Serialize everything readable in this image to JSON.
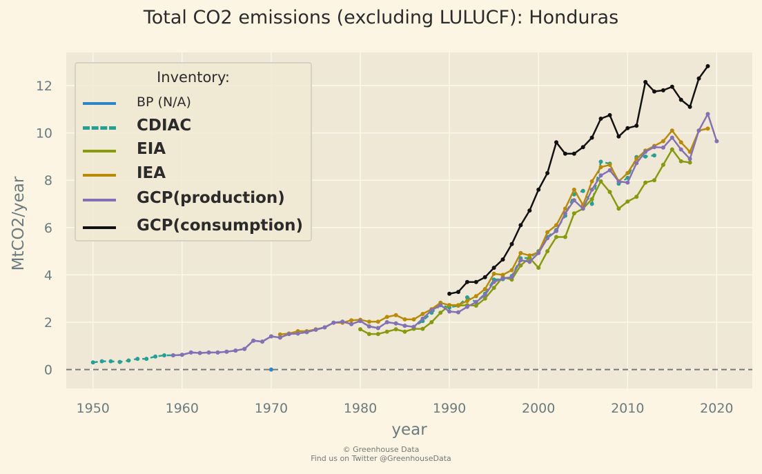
{
  "title": "Total CO2 emissions (excluding LULUCF): Honduras",
  "footer": {
    "line1": "© Greenhouse Data",
    "line2": "Find us on Twitter @GreenhouseData"
  },
  "legend": {
    "title": "Inventory:",
    "placement": "top-left",
    "entries": [
      {
        "label": "BP (N/A)",
        "color": "#2e86c9",
        "style": "solid",
        "weight": "normal"
      },
      {
        "label": "CDIAC",
        "color": "#26a095",
        "style": "dashed",
        "weight": "bold"
      },
      {
        "label": "EIA",
        "color": "#869a0d",
        "style": "solid",
        "weight": "bold"
      },
      {
        "label": "IEA",
        "color": "#b98a06",
        "style": "solid",
        "weight": "bold"
      },
      {
        "label": "GCP(production)",
        "color": "#8471b5",
        "style": "solid",
        "weight": "bold"
      },
      {
        "label": "GCP(consumption)",
        "color": "#111111",
        "style": "solid",
        "weight": "bold"
      }
    ]
  },
  "chart_data": {
    "type": "line",
    "title": "Total CO2 emissions (excluding LULUCF): Honduras",
    "xlabel": "year",
    "ylabel": "MtCO2/year",
    "xlim": [
      1947,
      2024
    ],
    "ylim": [
      -0.8,
      13.4
    ],
    "xticks": [
      1950,
      1960,
      1970,
      1980,
      1990,
      2000,
      2010,
      2020
    ],
    "yticks": [
      0,
      2,
      4,
      6,
      8,
      10,
      12
    ],
    "grid": true,
    "zero_line": true,
    "series": [
      {
        "name": "BP (N/A)",
        "color": "#2e86c9",
        "x": [
          1970
        ],
        "y": [
          0
        ]
      },
      {
        "name": "CDIAC",
        "color": "#26a095",
        "x": [
          1950,
          1951,
          1952,
          1953,
          1954,
          1955,
          1956,
          1957,
          1958,
          1959,
          1960,
          1961,
          1962,
          1963,
          1964,
          1965,
          1966,
          1967,
          1968,
          1969,
          1970,
          1971,
          1972,
          1973,
          1974,
          1975,
          1976,
          1977,
          1978,
          1979,
          1980,
          1981,
          1982,
          1983,
          1984,
          1985,
          1986,
          1987,
          1988,
          1989,
          1990,
          1991,
          1992,
          1993,
          1994,
          1995,
          1996,
          1997,
          1998,
          1999,
          2000,
          2001,
          2002,
          2003,
          2004,
          2005,
          2006,
          2007,
          2008,
          2009,
          2010,
          2011,
          2012,
          2013
        ],
        "y": [
          0.3,
          0.35,
          0.35,
          0.32,
          0.38,
          0.45,
          0.45,
          0.55,
          0.6,
          0.6,
          0.62,
          0.72,
          0.7,
          0.72,
          0.72,
          0.75,
          0.8,
          0.87,
          1.22,
          1.18,
          1.4,
          1.35,
          1.5,
          1.52,
          1.58,
          1.68,
          1.78,
          1.98,
          2.02,
          1.92,
          2.05,
          1.82,
          1.75,
          2.0,
          1.95,
          1.85,
          1.8,
          2.05,
          2.4,
          2.72,
          2.62,
          2.7,
          3.05,
          2.85,
          3.2,
          3.8,
          3.82,
          3.95,
          4.7,
          4.72,
          5.0,
          5.6,
          5.9,
          6.5,
          7.4,
          7.55,
          7.0,
          8.78,
          8.7,
          7.85,
          8.1,
          8.98,
          9.0,
          9.05
        ]
      },
      {
        "name": "EIA",
        "color": "#869a0d",
        "x": [
          1980,
          1981,
          1982,
          1983,
          1984,
          1985,
          1986,
          1987,
          1988,
          1989,
          1990,
          1991,
          1992,
          1993,
          1994,
          1995,
          1996,
          1997,
          1998,
          1999,
          2000,
          2001,
          2002,
          2003,
          2004,
          2005,
          2006,
          2007,
          2008,
          2009,
          2010,
          2011,
          2012,
          2013,
          2014,
          2015,
          2016,
          2017
        ],
        "y": [
          1.7,
          1.5,
          1.5,
          1.6,
          1.7,
          1.6,
          1.72,
          1.72,
          2.0,
          2.4,
          2.72,
          2.7,
          2.72,
          2.7,
          3.0,
          3.45,
          3.9,
          3.8,
          4.4,
          4.72,
          4.3,
          5.0,
          5.6,
          5.6,
          6.6,
          6.8,
          7.2,
          7.95,
          7.5,
          6.8,
          7.1,
          7.3,
          7.9,
          8.0,
          8.65,
          9.3,
          8.8,
          8.75
        ]
      },
      {
        "name": "IEA",
        "color": "#b98a06",
        "x": [
          1971,
          1972,
          1973,
          1974,
          1975,
          1976,
          1977,
          1978,
          1979,
          1980,
          1981,
          1982,
          1983,
          1984,
          1985,
          1986,
          1987,
          1988,
          1989,
          1990,
          1991,
          1992,
          1993,
          1994,
          1995,
          1996,
          1997,
          1998,
          1999,
          2000,
          2001,
          2002,
          2003,
          2004,
          2005,
          2006,
          2007,
          2008,
          2009,
          2010,
          2011,
          2012,
          2013,
          2014,
          2015,
          2016,
          2017,
          2018,
          2019
        ],
        "y": [
          1.48,
          1.52,
          1.62,
          1.62,
          1.7,
          1.78,
          1.98,
          1.98,
          2.08,
          2.1,
          2.02,
          2.02,
          2.22,
          2.3,
          2.12,
          2.12,
          2.35,
          2.55,
          2.82,
          2.72,
          2.72,
          2.9,
          3.1,
          3.4,
          4.05,
          4.0,
          4.2,
          4.92,
          4.82,
          4.95,
          5.8,
          6.1,
          6.8,
          7.6,
          6.95,
          7.95,
          8.55,
          8.65,
          7.95,
          8.3,
          8.9,
          9.25,
          9.45,
          9.65,
          10.1,
          9.6,
          9.2,
          10.1,
          10.18
        ]
      },
      {
        "name": "GCP(production)",
        "color": "#8471b5",
        "x": [
          1959,
          1960,
          1961,
          1962,
          1963,
          1964,
          1965,
          1966,
          1967,
          1968,
          1969,
          1970,
          1971,
          1972,
          1973,
          1974,
          1975,
          1976,
          1977,
          1978,
          1979,
          1980,
          1981,
          1982,
          1983,
          1984,
          1985,
          1986,
          1987,
          1988,
          1989,
          1990,
          1991,
          1992,
          1993,
          1994,
          1995,
          1996,
          1997,
          1998,
          1999,
          2000,
          2001,
          2002,
          2003,
          2004,
          2005,
          2006,
          2007,
          2008,
          2009,
          2010,
          2011,
          2012,
          2013,
          2014,
          2015,
          2016,
          2017,
          2018,
          2019,
          2020
        ],
        "y": [
          0.6,
          0.62,
          0.72,
          0.7,
          0.72,
          0.72,
          0.75,
          0.8,
          0.87,
          1.22,
          1.18,
          1.4,
          1.35,
          1.5,
          1.52,
          1.58,
          1.68,
          1.78,
          1.98,
          2.02,
          1.92,
          2.05,
          1.82,
          1.75,
          2.0,
          1.95,
          1.85,
          1.8,
          2.15,
          2.5,
          2.72,
          2.45,
          2.42,
          2.65,
          2.85,
          3.15,
          3.7,
          3.85,
          3.9,
          4.62,
          4.55,
          4.92,
          5.55,
          5.85,
          6.6,
          7.15,
          6.8,
          7.6,
          8.2,
          8.42,
          7.95,
          7.9,
          8.72,
          9.2,
          9.4,
          9.38,
          9.8,
          9.3,
          8.9,
          10.1,
          10.8,
          9.65
        ]
      },
      {
        "name": "GCP(consumption)",
        "color": "#111111",
        "x": [
          1990,
          1991,
          1992,
          1993,
          1994,
          1995,
          1996,
          1997,
          1998,
          1999,
          2000,
          2001,
          2002,
          2003,
          2004,
          2005,
          2006,
          2007,
          2008,
          2009,
          2010,
          2011,
          2012,
          2013,
          2014,
          2015,
          2016,
          2017,
          2018,
          2019
        ],
        "y": [
          3.2,
          3.28,
          3.7,
          3.7,
          3.9,
          4.3,
          4.65,
          5.3,
          6.1,
          6.72,
          7.6,
          8.3,
          9.6,
          9.12,
          9.12,
          9.4,
          9.8,
          10.6,
          10.75,
          9.85,
          10.2,
          10.3,
          12.15,
          11.75,
          11.8,
          11.95,
          11.4,
          11.1,
          12.3,
          12.82
        ]
      }
    ]
  }
}
